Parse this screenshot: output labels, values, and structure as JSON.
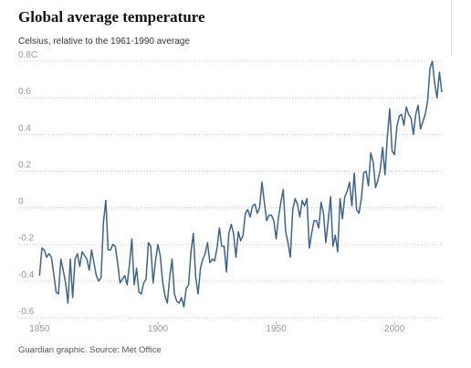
{
  "chart_data": {
    "type": "line",
    "title": "Global average temperature",
    "subtitle": "Celsius, relative to the 1961-1990 average",
    "source": "Guardian graphic. Source: Met Office",
    "color": "#3f6489",
    "grid": true,
    "xlim": [
      1841,
      2020
    ],
    "xticks": [
      1850,
      1900,
      1950,
      2000
    ],
    "ylim": [
      -0.62,
      0.82
    ],
    "yticks": [
      {
        "value": 0.8,
        "label": "0.8C"
      },
      0.6,
      0.4,
      0.2,
      0,
      -0.2,
      -0.4,
      -0.6
    ],
    "x": [
      1850,
      1851,
      1852,
      1853,
      1854,
      1855,
      1856,
      1857,
      1858,
      1859,
      1860,
      1861,
      1862,
      1863,
      1864,
      1865,
      1866,
      1867,
      1868,
      1869,
      1870,
      1871,
      1872,
      1873,
      1874,
      1875,
      1876,
      1877,
      1878,
      1879,
      1880,
      1881,
      1882,
      1883,
      1884,
      1885,
      1886,
      1887,
      1888,
      1889,
      1890,
      1891,
      1892,
      1893,
      1894,
      1895,
      1896,
      1897,
      1898,
      1899,
      1900,
      1901,
      1902,
      1903,
      1904,
      1905,
      1906,
      1907,
      1908,
      1909,
      1910,
      1911,
      1912,
      1913,
      1914,
      1915,
      1916,
      1917,
      1918,
      1919,
      1920,
      1921,
      1922,
      1923,
      1924,
      1925,
      1926,
      1927,
      1928,
      1929,
      1930,
      1931,
      1932,
      1933,
      1934,
      1935,
      1936,
      1937,
      1938,
      1939,
      1940,
      1941,
      1942,
      1943,
      1944,
      1945,
      1946,
      1947,
      1948,
      1949,
      1950,
      1951,
      1952,
      1953,
      1954,
      1955,
      1956,
      1957,
      1958,
      1959,
      1960,
      1961,
      1962,
      1963,
      1964,
      1965,
      1966,
      1967,
      1968,
      1969,
      1970,
      1971,
      1972,
      1973,
      1974,
      1975,
      1976,
      1977,
      1978,
      1979,
      1980,
      1981,
      1982,
      1983,
      1984,
      1985,
      1986,
      1987,
      1988,
      1989,
      1990,
      1991,
      1992,
      1993,
      1994,
      1995,
      1996,
      1997,
      1998,
      1999,
      2000,
      2001,
      2002,
      2003,
      2004,
      2005,
      2006,
      2007,
      2008,
      2009,
      2010,
      2011,
      2012,
      2013,
      2014,
      2015,
      2016,
      2017,
      2018,
      2019,
      2020
    ],
    "values": [
      -0.37,
      -0.22,
      -0.23,
      -0.27,
      -0.25,
      -0.27,
      -0.36,
      -0.46,
      -0.47,
      -0.28,
      -0.34,
      -0.41,
      -0.52,
      -0.28,
      -0.49,
      -0.28,
      -0.25,
      -0.32,
      -0.24,
      -0.26,
      -0.28,
      -0.34,
      -0.23,
      -0.3,
      -0.37,
      -0.4,
      -0.38,
      -0.08,
      0.04,
      -0.23,
      -0.23,
      -0.2,
      -0.21,
      -0.3,
      -0.41,
      -0.39,
      -0.37,
      -0.42,
      -0.31,
      -0.17,
      -0.42,
      -0.33,
      -0.46,
      -0.47,
      -0.41,
      -0.39,
      -0.19,
      -0.21,
      -0.41,
      -0.29,
      -0.2,
      -0.26,
      -0.4,
      -0.48,
      -0.52,
      -0.38,
      -0.28,
      -0.47,
      -0.51,
      -0.52,
      -0.49,
      -0.54,
      -0.44,
      -0.42,
      -0.24,
      -0.14,
      -0.38,
      -0.47,
      -0.33,
      -0.28,
      -0.25,
      -0.19,
      -0.3,
      -0.28,
      -0.29,
      -0.22,
      -0.11,
      -0.21,
      -0.21,
      -0.35,
      -0.14,
      -0.09,
      -0.14,
      -0.27,
      -0.13,
      -0.18,
      -0.15,
      -0.03,
      -0.01,
      -0.05,
      0.01,
      0.02,
      -0.03,
      0.0,
      0.14,
      0.03,
      -0.07,
      -0.04,
      -0.04,
      -0.07,
      -0.17,
      -0.05,
      0.03,
      0.1,
      -0.13,
      -0.19,
      -0.27,
      -0.01,
      0.05,
      0.02,
      -0.05,
      0.04,
      0.01,
      0.05,
      -0.22,
      -0.14,
      -0.07,
      -0.07,
      -0.11,
      0.03,
      -0.03,
      -0.19,
      -0.07,
      0.06,
      -0.21,
      -0.15,
      -0.24,
      0.05,
      -0.06,
      0.06,
      0.09,
      0.14,
      0.01,
      0.19,
      -0.01,
      -0.03,
      0.05,
      0.19,
      0.2,
      0.12,
      0.3,
      0.25,
      0.11,
      0.15,
      0.21,
      0.33,
      0.18,
      0.39,
      0.54,
      0.31,
      0.29,
      0.44,
      0.5,
      0.51,
      0.45,
      0.55,
      0.51,
      0.49,
      0.4,
      0.51,
      0.56,
      0.43,
      0.47,
      0.51,
      0.58,
      0.76,
      0.8,
      0.68,
      0.6,
      0.74,
      0.63
    ]
  }
}
